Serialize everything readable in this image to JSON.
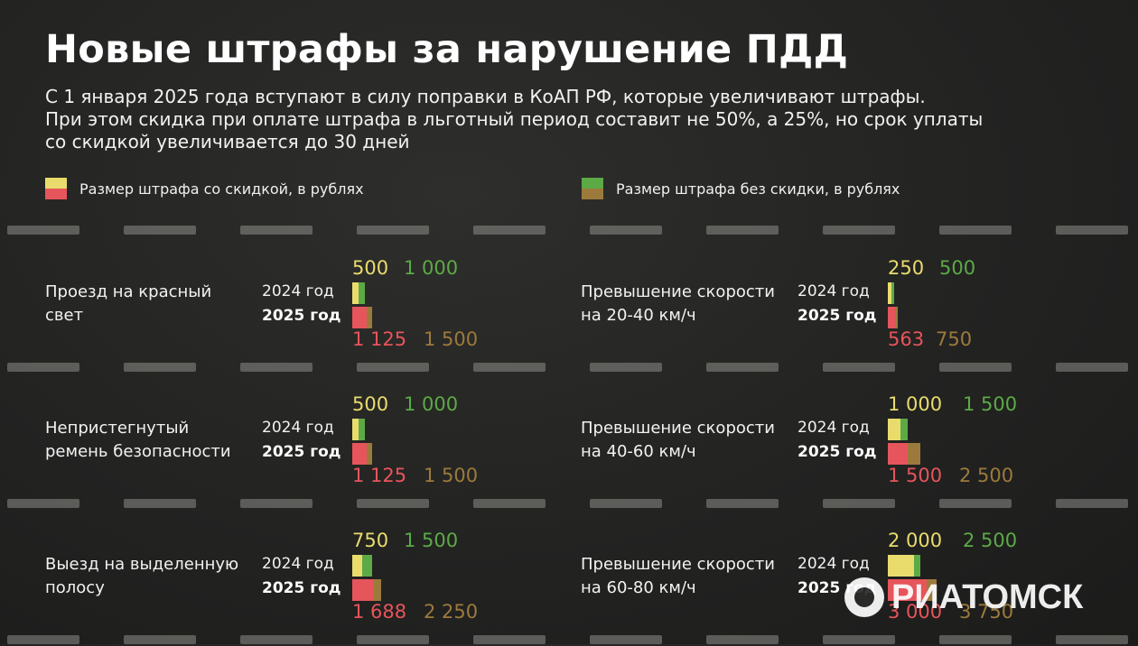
{
  "title": "Новые штрафы за нарушение ПДД",
  "subtitle_lines": [
    "С 1 января 2025 года вступают в силу поправки в КоАП РФ, которые увеличивают штрафы.",
    "При этом скидка при оплате штрафа в льготный период составит не 50%, а 25%, но срок уплаты",
    "со скидкой увеличивается до 30 дней"
  ],
  "legend": {
    "discount_label": "Размер штрафа со скидкой, в рублях",
    "full_label": "Размер штрафа без скидки, в рублях"
  },
  "colors": {
    "discount_2024": "#e9dc6c",
    "full_2024": "#5caa46",
    "discount_2025": "#e6555b",
    "full_2025": "#9c7a3c"
  },
  "year_labels": {
    "y2024": "2024 год",
    "y2025": "2025 год"
  },
  "watermark": "РИАТОМСК",
  "chart_data": {
    "type": "bar",
    "orientation": "horizontal",
    "items": [
      {
        "label_lines": [
          "Проезд на красный",
          "свет"
        ],
        "y2024": {
          "discount": 500,
          "full": 1000,
          "discount_label": "500",
          "full_label": "1 000"
        },
        "y2025": {
          "discount": 1125,
          "full": 1500,
          "discount_label": "1 125",
          "full_label": "1 500"
        }
      },
      {
        "label_lines": [
          "Непристегнутый",
          "ремень безопасности"
        ],
        "y2024": {
          "discount": 500,
          "full": 1000,
          "discount_label": "500",
          "full_label": "1 000"
        },
        "y2025": {
          "discount": 1125,
          "full": 1500,
          "discount_label": "1 125",
          "full_label": "1 500"
        }
      },
      {
        "label_lines": [
          "Выезд на выделенную",
          "полосу"
        ],
        "y2024": {
          "discount": 750,
          "full": 1500,
          "discount_label": "750",
          "full_label": "1 500"
        },
        "y2025": {
          "discount": 1688,
          "full": 2250,
          "discount_label": "1 688",
          "full_label": "2 250"
        }
      },
      {
        "label_lines": [
          "Превышение скорости",
          "на 20-40 км/ч"
        ],
        "y2024": {
          "discount": 250,
          "full": 500,
          "discount_label": "250",
          "full_label": "500"
        },
        "y2025": {
          "discount": 563,
          "full": 750,
          "discount_label": "563",
          "full_label": "750"
        }
      },
      {
        "label_lines": [
          "Превышение скорости",
          "на 40-60 км/ч"
        ],
        "y2024": {
          "discount": 1000,
          "full": 1500,
          "discount_label": "1 000",
          "full_label": "1 500"
        },
        "y2025": {
          "discount": 1500,
          "full": 2500,
          "discount_label": "1 500",
          "full_label": "2 500"
        }
      },
      {
        "label_lines": [
          "Превышение скорости",
          "на 60-80 км/ч"
        ],
        "y2024": {
          "discount": 2000,
          "full": 2500,
          "discount_label": "2 000",
          "full_label": "2 500"
        },
        "y2025": {
          "discount": 3000,
          "full": 3750,
          "discount_label": "3 000",
          "full_label": "3 750"
        }
      }
    ]
  }
}
